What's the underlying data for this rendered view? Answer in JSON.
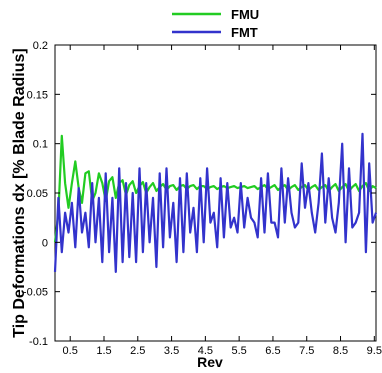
{
  "chart_data": {
    "type": "line",
    "xlabel": "Rev",
    "ylabel": "Tip Deformations dx [% Blade Radius]",
    "xlim": [
      0.05,
      9.55
    ],
    "ylim": [
      -0.1,
      0.2
    ],
    "x_ticks": [
      0.5,
      1.5,
      2.5,
      3.5,
      4.5,
      5.5,
      6.5,
      7.5,
      8.5,
      9.5
    ],
    "x_tick_labels": [
      "0.5",
      "1.5",
      "2.5",
      "3.5",
      "4.5",
      "5.5",
      "6.5",
      "7.5",
      "8.5",
      "9.5"
    ],
    "y_ticks": [
      -0.1,
      -0.05,
      0,
      0.05,
      0.1,
      0.15,
      0.2
    ],
    "y_tick_labels": [
      "-0.1",
      "-0.05",
      "0",
      "0.05",
      "0.1",
      "0.15",
      "0.2"
    ],
    "legend_position": "top-center",
    "grid": false,
    "series": [
      {
        "name": "FMU",
        "color": "#22cc22",
        "x": [
          0.05,
          0.15,
          0.25,
          0.35,
          0.45,
          0.55,
          0.65,
          0.75,
          0.85,
          0.95,
          1.05,
          1.15,
          1.25,
          1.35,
          1.45,
          1.55,
          1.65,
          1.75,
          1.85,
          1.95,
          2.05,
          2.15,
          2.25,
          2.35,
          2.45,
          2.55,
          2.65,
          2.75,
          2.85,
          2.95,
          3.05,
          3.15,
          3.25,
          3.35,
          3.45,
          3.55,
          3.65,
          3.75,
          3.85,
          3.95,
          4.05,
          4.15,
          4.25,
          4.35,
          4.45,
          4.55,
          4.65,
          4.75,
          4.85,
          4.95,
          5.05,
          5.15,
          5.25,
          5.35,
          5.45,
          5.55,
          5.65,
          5.75,
          5.85,
          5.95,
          6.05,
          6.15,
          6.25,
          6.35,
          6.45,
          6.55,
          6.65,
          6.75,
          6.85,
          6.95,
          7.05,
          7.15,
          7.25,
          7.35,
          7.45,
          7.55,
          7.65,
          7.75,
          7.85,
          7.95,
          8.05,
          8.15,
          8.25,
          8.35,
          8.45,
          8.55,
          8.65,
          8.75,
          8.85,
          8.95,
          9.05,
          9.15,
          9.25,
          9.35,
          9.45,
          9.55
        ],
        "y": [
          0.0,
          0.03,
          0.108,
          0.06,
          0.035,
          0.06,
          0.082,
          0.055,
          0.04,
          0.07,
          0.072,
          0.042,
          0.05,
          0.07,
          0.06,
          0.042,
          0.062,
          0.066,
          0.045,
          0.06,
          0.063,
          0.048,
          0.058,
          0.062,
          0.05,
          0.057,
          0.061,
          0.05,
          0.056,
          0.06,
          0.052,
          0.056,
          0.059,
          0.053,
          0.057,
          0.058,
          0.053,
          0.057,
          0.058,
          0.054,
          0.057,
          0.058,
          0.054,
          0.057,
          0.057,
          0.054,
          0.056,
          0.057,
          0.054,
          0.056,
          0.057,
          0.055,
          0.056,
          0.057,
          0.055,
          0.056,
          0.057,
          0.055,
          0.056,
          0.057,
          0.054,
          0.056,
          0.058,
          0.054,
          0.056,
          0.058,
          0.053,
          0.056,
          0.058,
          0.053,
          0.056,
          0.058,
          0.053,
          0.056,
          0.058,
          0.053,
          0.056,
          0.058,
          0.053,
          0.056,
          0.058,
          0.052,
          0.056,
          0.059,
          0.052,
          0.056,
          0.059,
          0.052,
          0.056,
          0.059,
          0.052,
          0.057,
          0.06,
          0.052,
          0.057,
          0.055
        ]
      },
      {
        "name": "FMT",
        "color": "#3333cc",
        "x": [
          0.05,
          0.15,
          0.25,
          0.35,
          0.45,
          0.55,
          0.65,
          0.75,
          0.85,
          0.95,
          1.05,
          1.15,
          1.25,
          1.35,
          1.45,
          1.55,
          1.65,
          1.75,
          1.85,
          1.95,
          2.05,
          2.15,
          2.25,
          2.35,
          2.45,
          2.55,
          2.65,
          2.75,
          2.85,
          2.95,
          3.05,
          3.15,
          3.25,
          3.35,
          3.45,
          3.55,
          3.65,
          3.75,
          3.85,
          3.95,
          4.05,
          4.15,
          4.25,
          4.35,
          4.45,
          4.55,
          4.65,
          4.75,
          4.85,
          4.95,
          5.05,
          5.15,
          5.25,
          5.35,
          5.45,
          5.55,
          5.65,
          5.75,
          5.85,
          5.95,
          6.05,
          6.15,
          6.25,
          6.35,
          6.45,
          6.55,
          6.65,
          6.75,
          6.85,
          6.95,
          7.05,
          7.15,
          7.25,
          7.35,
          7.45,
          7.55,
          7.65,
          7.75,
          7.85,
          7.95,
          8.05,
          8.15,
          8.25,
          8.35,
          8.45,
          8.55,
          8.65,
          8.75,
          8.85,
          8.95,
          9.05,
          9.15,
          9.25,
          9.35,
          9.45,
          9.55
        ],
        "y": [
          -0.03,
          0.045,
          -0.01,
          0.03,
          0.01,
          0.04,
          -0.005,
          0.055,
          0.01,
          0.03,
          -0.005,
          0.06,
          0.0,
          0.045,
          -0.02,
          0.07,
          -0.01,
          0.045,
          -0.03,
          0.075,
          -0.02,
          0.06,
          -0.015,
          0.05,
          -0.02,
          0.075,
          -0.01,
          0.06,
          0.0,
          0.045,
          -0.025,
          0.07,
          -0.005,
          0.075,
          0.005,
          0.04,
          -0.02,
          0.065,
          -0.01,
          0.07,
          0.01,
          0.035,
          -0.01,
          0.065,
          0.0,
          0.075,
          0.02,
          0.03,
          -0.005,
          0.065,
          0.005,
          0.06,
          0.015,
          0.025,
          0.01,
          0.06,
          0.015,
          0.045,
          0.025,
          0.02,
          0.005,
          0.065,
          0.01,
          0.07,
          0.02,
          0.02,
          0.005,
          0.075,
          0.02,
          0.065,
          0.03,
          0.015,
          0.02,
          0.08,
          0.035,
          0.06,
          0.03,
          0.01,
          0.04,
          0.09,
          0.02,
          0.065,
          0.025,
          0.01,
          0.04,
          0.1,
          0.0,
          0.075,
          0.015,
          0.02,
          0.03,
          0.11,
          -0.01,
          0.08,
          0.02,
          0.03
        ]
      }
    ]
  }
}
